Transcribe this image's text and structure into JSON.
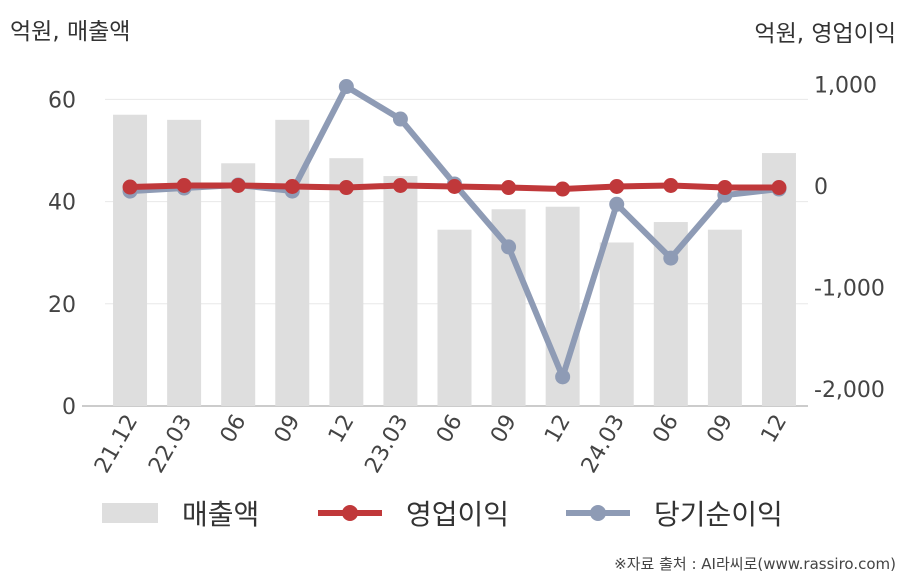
{
  "left_unit_label": "억원, 매출액",
  "right_unit_label": "억원, 영업이익",
  "source": "※자료 출처 : AI라씨로(www.rassiro.com)",
  "colors": {
    "bars": "#dedede",
    "operating_profit": "#c0383a",
    "net_income": "#8e9bb5",
    "grid": "#e8e8e8",
    "axis": "#bbbbbb"
  },
  "chart_data": {
    "type": "bar",
    "categories": [
      "21.12",
      "22.03",
      "06",
      "09",
      "12",
      "23.03",
      "06",
      "09",
      "12",
      "24.03",
      "06",
      "09",
      "12"
    ],
    "y_left": {
      "ticks": [
        "60",
        "40",
        "20",
        "0"
      ],
      "tick_values": [
        60,
        40,
        20,
        0
      ],
      "ylim": [
        0,
        66
      ]
    },
    "y_right": {
      "ticks": [
        "1,000",
        "0",
        "-1,000",
        "-2,000"
      ],
      "tick_values": [
        1000,
        0,
        -1000,
        -2000
      ],
      "ylim": [
        -2200,
        1050
      ]
    },
    "grid": true,
    "legend_position": "bottom",
    "series": [
      {
        "name": "매출액",
        "type": "bar",
        "axis": "left",
        "values": [
          57,
          56,
          47.5,
          56,
          48.5,
          45,
          34.5,
          38.5,
          39,
          32,
          36,
          34.5,
          49.5
        ]
      },
      {
        "name": "영업이익",
        "type": "line",
        "axis": "right",
        "values": [
          -10,
          5,
          5,
          -5,
          -15,
          5,
          -5,
          -15,
          -30,
          -5,
          5,
          -15,
          -15
        ]
      },
      {
        "name": "당기순이익",
        "type": "line",
        "axis": "right",
        "values": [
          -50,
          -20,
          10,
          -50,
          980,
          660,
          20,
          -600,
          -1880,
          -180,
          -710,
          -90,
          -30
        ]
      }
    ]
  }
}
